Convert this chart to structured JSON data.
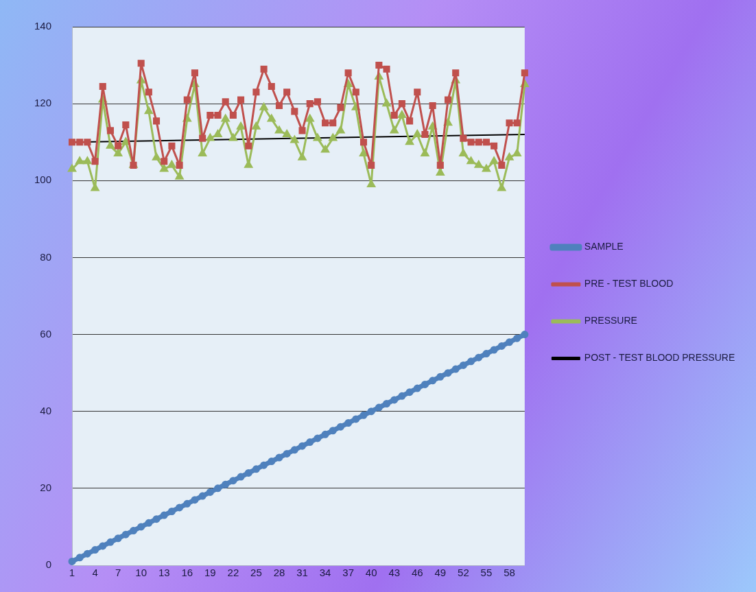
{
  "chart_data": {
    "type": "line",
    "x": [
      1,
      2,
      3,
      4,
      5,
      6,
      7,
      8,
      9,
      10,
      11,
      12,
      13,
      14,
      15,
      16,
      17,
      18,
      19,
      20,
      21,
      22,
      23,
      24,
      25,
      26,
      27,
      28,
      29,
      30,
      31,
      32,
      33,
      34,
      35,
      36,
      37,
      38,
      39,
      40,
      41,
      42,
      43,
      44,
      45,
      46,
      47,
      48,
      49,
      50,
      51,
      52,
      53,
      54,
      55,
      56,
      57,
      58,
      59,
      60
    ],
    "series": [
      {
        "name": "SAMPLE",
        "color": "#4f81bd",
        "marker": "circle",
        "values": [
          1,
          2,
          3,
          4,
          5,
          6,
          7,
          8,
          9,
          10,
          11,
          12,
          13,
          14,
          15,
          16,
          17,
          18,
          19,
          20,
          21,
          22,
          23,
          24,
          25,
          26,
          27,
          28,
          29,
          30,
          31,
          32,
          33,
          34,
          35,
          36,
          37,
          38,
          39,
          40,
          41,
          42,
          43,
          44,
          45,
          46,
          47,
          48,
          49,
          50,
          51,
          52,
          53,
          54,
          55,
          56,
          57,
          58,
          59,
          60
        ]
      },
      {
        "name": "PRE - TEST BLOOD",
        "color": "#c0504d",
        "marker": "square",
        "values": [
          110,
          110,
          110,
          105,
          124.5,
          113,
          109,
          114.5,
          104,
          130.5,
          123,
          115.5,
          105,
          109,
          104,
          121,
          128,
          111,
          117,
          117,
          120.5,
          117,
          121,
          109,
          123,
          129,
          124.5,
          119.5,
          123,
          118,
          113,
          120,
          120.5,
          115,
          115,
          119,
          128,
          123,
          110,
          104,
          130,
          129,
          117,
          120,
          115.5,
          123,
          112,
          119.5,
          104,
          121,
          128,
          111,
          110,
          110,
          110,
          109,
          104,
          115,
          115,
          128
        ]
      },
      {
        "name": "PRESSURE",
        "color": "#9bbb59",
        "marker": "triangle",
        "values": [
          103,
          105,
          105,
          98,
          121,
          109,
          107,
          110,
          104,
          126,
          118,
          106,
          103,
          104,
          101,
          116,
          125,
          107,
          111,
          112,
          116,
          111,
          114,
          104,
          114,
          119,
          116,
          113,
          112,
          110.5,
          106,
          116,
          111,
          108,
          111,
          113,
          125,
          119,
          107,
          99,
          127,
          120,
          113,
          117,
          110,
          112,
          107,
          114,
          102,
          115,
          126,
          107,
          105,
          104,
          103,
          105,
          98,
          106,
          107,
          125
        ]
      },
      {
        "name": "POST - TEST BLOOD PRESSURE",
        "color": "#000000",
        "marker": "none",
        "x": [
          1,
          60
        ],
        "values": [
          110,
          112
        ]
      }
    ],
    "xlim": [
      1,
      60
    ],
    "xticks": [
      1,
      4,
      7,
      10,
      13,
      16,
      19,
      22,
      25,
      28,
      31,
      34,
      37,
      40,
      43,
      46,
      49,
      52,
      55,
      58
    ],
    "ylim": [
      0,
      140
    ],
    "yticks": [
      0,
      20,
      40,
      60,
      80,
      100,
      120,
      140
    ],
    "grid": "y",
    "legend": "right"
  }
}
